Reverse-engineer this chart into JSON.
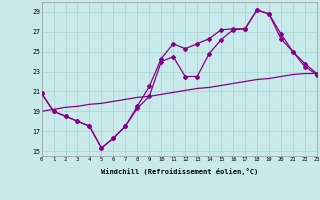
{
  "background_color": "#c8eaea",
  "line_color": "#880088",
  "grid_color": "#aad8d8",
  "x_label": "Windchill (Refroidissement éolien,°C)",
  "ylabel_ticks": [
    15,
    17,
    19,
    21,
    23,
    25,
    27,
    29
  ],
  "xlim": [
    0,
    23
  ],
  "ylim": [
    14.5,
    30.0
  ],
  "line1_x": [
    0,
    1,
    2,
    3,
    4,
    5,
    6,
    7,
    8,
    9,
    10,
    11,
    12,
    13,
    14,
    15,
    16,
    17,
    18,
    19,
    20,
    21,
    22,
    23
  ],
  "line1_y": [
    20.8,
    19.0,
    18.5,
    18.0,
    17.5,
    15.3,
    16.3,
    17.5,
    19.3,
    20.5,
    24.0,
    24.5,
    22.5,
    22.5,
    24.8,
    26.2,
    27.2,
    27.3,
    29.2,
    28.8,
    26.3,
    25.0,
    23.8,
    22.8
  ],
  "line2_x": [
    0,
    1,
    2,
    3,
    4,
    5,
    6,
    7,
    8,
    9,
    10,
    11,
    12,
    13,
    14,
    15,
    16,
    17,
    18,
    19,
    20,
    21,
    22,
    23
  ],
  "line2_y": [
    20.8,
    19.0,
    18.5,
    18.0,
    17.5,
    15.3,
    16.3,
    17.5,
    19.5,
    21.5,
    24.3,
    25.8,
    25.3,
    25.8,
    26.3,
    27.2,
    27.3,
    27.3,
    29.2,
    28.8,
    26.8,
    25.0,
    23.5,
    22.7
  ],
  "line3_x": [
    0,
    1,
    2,
    3,
    4,
    5,
    6,
    7,
    8,
    9,
    10,
    11,
    12,
    13,
    14,
    15,
    16,
    17,
    18,
    19,
    20,
    21,
    22,
    23
  ],
  "line3_y": [
    19.0,
    19.2,
    19.4,
    19.5,
    19.7,
    19.8,
    20.0,
    20.2,
    20.4,
    20.5,
    20.7,
    20.9,
    21.1,
    21.3,
    21.4,
    21.6,
    21.8,
    22.0,
    22.2,
    22.3,
    22.5,
    22.7,
    22.8,
    22.8
  ],
  "marker": "D",
  "marker_size": 2.0,
  "line_width": 0.9
}
